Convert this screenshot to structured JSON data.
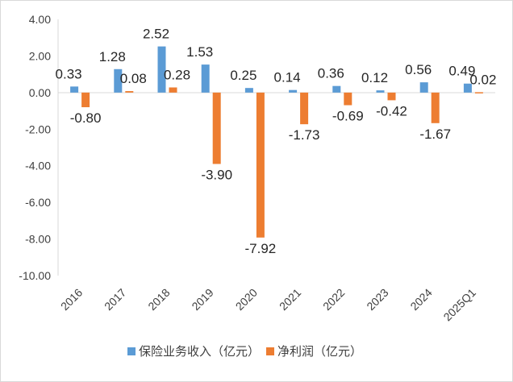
{
  "chart_data": {
    "type": "bar",
    "categories": [
      "2016",
      "2017",
      "2018",
      "2019",
      "2020",
      "2021",
      "2022",
      "2023",
      "2024",
      "2025Q1"
    ],
    "series": [
      {
        "name": "保险业务收入（亿元）",
        "color": "#5b9bd5",
        "values": [
          0.33,
          1.28,
          2.52,
          1.53,
          0.25,
          0.14,
          0.36,
          0.12,
          0.56,
          0.49
        ]
      },
      {
        "name": "净利润（亿元）",
        "color": "#ed7d31",
        "values": [
          -0.8,
          0.08,
          0.28,
          -3.9,
          -7.92,
          -1.73,
          -0.69,
          -0.42,
          -1.67,
          0.02
        ]
      }
    ],
    "yticks": [
      "4.00",
      "2.00",
      "0.00",
      "-2.00",
      "-4.00",
      "-6.00",
      "-8.00",
      "-10.00"
    ],
    "ylim": [
      -10,
      4
    ],
    "grid": false,
    "legend_position": "bottom",
    "xlabel": "",
    "ylabel": ""
  }
}
